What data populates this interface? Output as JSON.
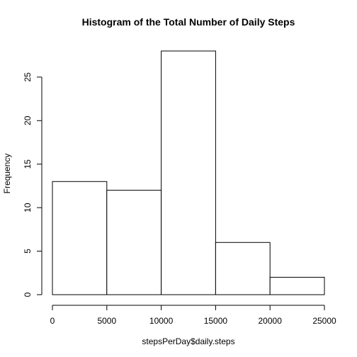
{
  "chart_data": {
    "type": "bar",
    "subtype": "histogram",
    "title": "Histogram of the Total Number of Daily Steps",
    "xlabel": "stepsPerDay$daily.steps",
    "ylabel": "Frequency",
    "bins": [
      {
        "start": 0,
        "end": 5000,
        "count": 13
      },
      {
        "start": 5000,
        "end": 10000,
        "count": 12
      },
      {
        "start": 10000,
        "end": 15000,
        "count": 28
      },
      {
        "start": 15000,
        "end": 20000,
        "count": 6
      },
      {
        "start": 20000,
        "end": 25000,
        "count": 2
      }
    ],
    "xlim": [
      0,
      25000
    ],
    "ylim": [
      0,
      28
    ],
    "x_ticks": [
      0,
      5000,
      10000,
      15000,
      20000,
      25000
    ],
    "y_ticks": [
      0,
      5,
      10,
      15,
      20,
      25
    ],
    "bar_fill": "#ffffff",
    "bar_stroke": "#000000",
    "grid": false,
    "legend": "none"
  }
}
